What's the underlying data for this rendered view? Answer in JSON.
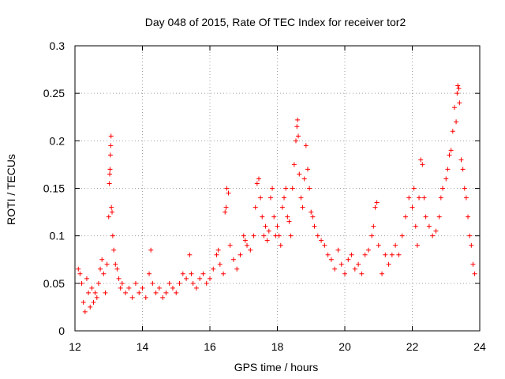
{
  "chart_data": {
    "type": "scatter",
    "title": "Day 048 of 2015, Rate Of TEC Index for receiver tor2",
    "xlabel": "GPS time / hours",
    "ylabel": "ROTI / TECUs",
    "xlim": [
      12,
      24
    ],
    "ylim": [
      0,
      0.3
    ],
    "x_ticks": [
      12,
      14,
      16,
      18,
      20,
      22,
      24
    ],
    "x_tick_labels": [
      "12",
      "14",
      "16",
      "18",
      "20",
      "22",
      "24"
    ],
    "y_ticks": [
      0,
      0.05,
      0.1,
      0.15,
      0.2,
      0.25,
      0.3
    ],
    "y_tick_labels": [
      "0",
      "0.05",
      "0.1",
      "0.15",
      "0.2",
      "0.25",
      "0.3"
    ],
    "grid": true,
    "marker": "plus",
    "color": "#ff0000",
    "series": [
      {
        "name": "tor2",
        "points": [
          [
            12.1,
            0.065
          ],
          [
            12.15,
            0.06
          ],
          [
            12.2,
            0.05
          ],
          [
            12.25,
            0.03
          ],
          [
            12.3,
            0.02
          ],
          [
            12.35,
            0.055
          ],
          [
            12.4,
            0.04
          ],
          [
            12.45,
            0.025
          ],
          [
            12.5,
            0.045
          ],
          [
            12.55,
            0.03
          ],
          [
            12.6,
            0.04
          ],
          [
            12.65,
            0.035
          ],
          [
            12.7,
            0.05
          ],
          [
            12.75,
            0.065
          ],
          [
            12.8,
            0.075
          ],
          [
            12.85,
            0.06
          ],
          [
            12.9,
            0.04
          ],
          [
            12.95,
            0.07
          ],
          [
            13.0,
            0.12
          ],
          [
            13.02,
            0.155
          ],
          [
            13.03,
            0.165
          ],
          [
            13.04,
            0.17
          ],
          [
            13.05,
            0.185
          ],
          [
            13.06,
            0.195
          ],
          [
            13.07,
            0.205
          ],
          [
            13.08,
            0.13
          ],
          [
            13.1,
            0.125
          ],
          [
            13.12,
            0.1
          ],
          [
            13.15,
            0.085
          ],
          [
            13.2,
            0.07
          ],
          [
            13.25,
            0.065
          ],
          [
            13.3,
            0.055
          ],
          [
            13.35,
            0.045
          ],
          [
            13.4,
            0.05
          ],
          [
            13.5,
            0.04
          ],
          [
            13.6,
            0.045
          ],
          [
            13.7,
            0.035
          ],
          [
            13.8,
            0.05
          ],
          [
            13.9,
            0.04
          ],
          [
            14.0,
            0.045
          ],
          [
            14.1,
            0.035
          ],
          [
            14.2,
            0.06
          ],
          [
            14.25,
            0.085
          ],
          [
            14.3,
            0.05
          ],
          [
            14.4,
            0.04
          ],
          [
            14.5,
            0.045
          ],
          [
            14.6,
            0.035
          ],
          [
            14.7,
            0.04
          ],
          [
            14.8,
            0.05
          ],
          [
            14.9,
            0.045
          ],
          [
            15.0,
            0.04
          ],
          [
            15.1,
            0.05
          ],
          [
            15.2,
            0.06
          ],
          [
            15.3,
            0.055
          ],
          [
            15.4,
            0.08
          ],
          [
            15.45,
            0.06
          ],
          [
            15.5,
            0.05
          ],
          [
            15.6,
            0.045
          ],
          [
            15.7,
            0.055
          ],
          [
            15.8,
            0.06
          ],
          [
            15.9,
            0.05
          ],
          [
            16.0,
            0.055
          ],
          [
            16.1,
            0.065
          ],
          [
            16.2,
            0.08
          ],
          [
            16.25,
            0.085
          ],
          [
            16.3,
            0.07
          ],
          [
            16.4,
            0.06
          ],
          [
            16.45,
            0.125
          ],
          [
            16.48,
            0.13
          ],
          [
            16.5,
            0.15
          ],
          [
            16.55,
            0.145
          ],
          [
            16.6,
            0.09
          ],
          [
            16.7,
            0.075
          ],
          [
            16.8,
            0.065
          ],
          [
            16.9,
            0.08
          ],
          [
            17.0,
            0.1
          ],
          [
            17.05,
            0.095
          ],
          [
            17.1,
            0.09
          ],
          [
            17.2,
            0.085
          ],
          [
            17.3,
            0.1
          ],
          [
            17.35,
            0.13
          ],
          [
            17.4,
            0.155
          ],
          [
            17.45,
            0.16
          ],
          [
            17.5,
            0.14
          ],
          [
            17.55,
            0.12
          ],
          [
            17.6,
            0.1
          ],
          [
            17.65,
            0.11
          ],
          [
            17.7,
            0.095
          ],
          [
            17.75,
            0.105
          ],
          [
            17.8,
            0.14
          ],
          [
            17.85,
            0.15
          ],
          [
            17.9,
            0.12
          ],
          [
            17.95,
            0.1
          ],
          [
            18.0,
            0.11
          ],
          [
            18.05,
            0.1
          ],
          [
            18.1,
            0.09
          ],
          [
            18.15,
            0.13
          ],
          [
            18.2,
            0.14
          ],
          [
            18.25,
            0.15
          ],
          [
            18.3,
            0.12
          ],
          [
            18.35,
            0.115
          ],
          [
            18.4,
            0.1
          ],
          [
            18.45,
            0.15
          ],
          [
            18.5,
            0.175
          ],
          [
            18.55,
            0.2
          ],
          [
            18.58,
            0.215
          ],
          [
            18.6,
            0.222
          ],
          [
            18.62,
            0.205
          ],
          [
            18.65,
            0.165
          ],
          [
            18.7,
            0.14
          ],
          [
            18.75,
            0.13
          ],
          [
            18.8,
            0.16
          ],
          [
            18.85,
            0.195
          ],
          [
            18.9,
            0.17
          ],
          [
            18.95,
            0.15
          ],
          [
            19.0,
            0.125
          ],
          [
            19.05,
            0.12
          ],
          [
            19.1,
            0.11
          ],
          [
            19.2,
            0.1
          ],
          [
            19.3,
            0.095
          ],
          [
            19.4,
            0.09
          ],
          [
            19.5,
            0.08
          ],
          [
            19.6,
            0.075
          ],
          [
            19.7,
            0.065
          ],
          [
            19.8,
            0.085
          ],
          [
            19.9,
            0.07
          ],
          [
            20.0,
            0.06
          ],
          [
            20.1,
            0.075
          ],
          [
            20.2,
            0.08
          ],
          [
            20.3,
            0.065
          ],
          [
            20.4,
            0.07
          ],
          [
            20.5,
            0.06
          ],
          [
            20.6,
            0.08
          ],
          [
            20.7,
            0.085
          ],
          [
            20.8,
            0.1
          ],
          [
            20.85,
            0.11
          ],
          [
            20.9,
            0.13
          ],
          [
            20.95,
            0.135
          ],
          [
            21.0,
            0.09
          ],
          [
            21.1,
            0.06
          ],
          [
            21.2,
            0.08
          ],
          [
            21.3,
            0.07
          ],
          [
            21.4,
            0.08
          ],
          [
            21.5,
            0.09
          ],
          [
            21.6,
            0.08
          ],
          [
            21.7,
            0.1
          ],
          [
            21.8,
            0.12
          ],
          [
            21.9,
            0.14
          ],
          [
            22.0,
            0.13
          ],
          [
            22.05,
            0.15
          ],
          [
            22.1,
            0.11
          ],
          [
            22.15,
            0.09
          ],
          [
            22.2,
            0.14
          ],
          [
            22.25,
            0.18
          ],
          [
            22.3,
            0.175
          ],
          [
            22.35,
            0.14
          ],
          [
            22.4,
            0.12
          ],
          [
            22.5,
            0.11
          ],
          [
            22.6,
            0.1
          ],
          [
            22.7,
            0.105
          ],
          [
            22.8,
            0.12
          ],
          [
            22.85,
            0.14
          ],
          [
            22.9,
            0.15
          ],
          [
            23.0,
            0.16
          ],
          [
            23.05,
            0.17
          ],
          [
            23.1,
            0.185
          ],
          [
            23.15,
            0.19
          ],
          [
            23.2,
            0.21
          ],
          [
            23.25,
            0.235
          ],
          [
            23.3,
            0.22
          ],
          [
            23.33,
            0.25
          ],
          [
            23.35,
            0.258
          ],
          [
            23.38,
            0.255
          ],
          [
            23.4,
            0.24
          ],
          [
            23.45,
            0.18
          ],
          [
            23.5,
            0.17
          ],
          [
            23.55,
            0.15
          ],
          [
            23.6,
            0.14
          ],
          [
            23.65,
            0.12
          ],
          [
            23.7,
            0.1
          ],
          [
            23.75,
            0.09
          ],
          [
            23.8,
            0.07
          ],
          [
            23.85,
            0.06
          ]
        ]
      }
    ]
  }
}
